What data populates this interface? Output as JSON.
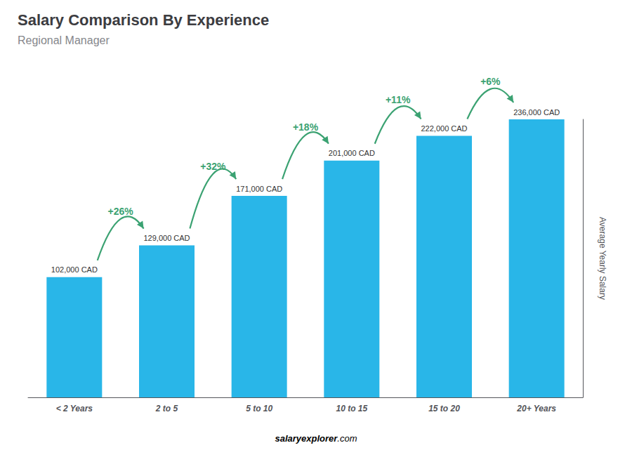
{
  "chart_data": {
    "type": "bar",
    "title": "Salary Comparison By Experience",
    "subtitle": "Regional Manager",
    "ylabel": "Average Yearly Salary",
    "categories": [
      "< 2 Years",
      "2 to 5",
      "5 to 10",
      "10 to 15",
      "15 to 20",
      "20+ Years"
    ],
    "values": [
      102000,
      129000,
      171000,
      201000,
      222000,
      236000
    ],
    "value_labels": [
      "102,000 CAD",
      "129,000 CAD",
      "171,000 CAD",
      "201,000 CAD",
      "222,000 CAD",
      "236,000 CAD"
    ],
    "data_labels": true,
    "color": "#29b6e8",
    "ylim": [
      0,
      236000
    ],
    "tick_labels": "x",
    "grid": false,
    "annotations": [
      {
        "text": "+26%",
        "color": "#3ba272"
      },
      {
        "text": "+32%",
        "color": "#3ba272"
      },
      {
        "text": "+18%",
        "color": "#3ba272"
      },
      {
        "text": "+11%",
        "color": "#3ba272"
      },
      {
        "text": "+6%",
        "color": "#3ba272"
      }
    ],
    "footer": [
      "salary",
      "explorer",
      ".com"
    ]
  }
}
